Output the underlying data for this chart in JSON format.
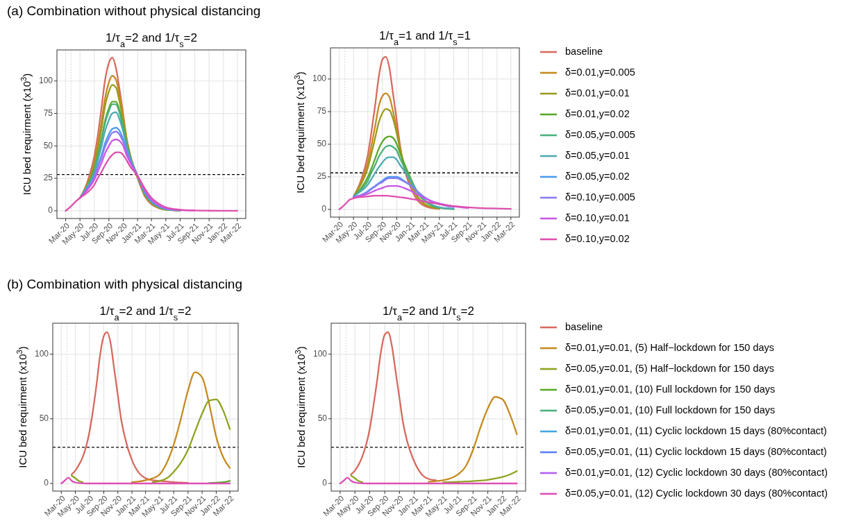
{
  "chart_data": [
    {
      "type": "line",
      "title": "(a) Combination without physical distancing",
      "subtitle": "1/τ$_{a}$=2 and 1/τ$_{s}$=2",
      "ylabel": "ICU bed requirment (x10$^{3}$)",
      "grid": true,
      "x": [
        "2020-03-01",
        "2020-03-15",
        "2020-04-01",
        "2020-04-15",
        "2020-05-01",
        "2020-06-01",
        "2020-07-01",
        "2020-07-15",
        "2020-08-01",
        "2020-08-15",
        "2020-09-01",
        "2020-09-15",
        "2020-10-01",
        "2020-10-15",
        "2020-11-01",
        "2020-11-15",
        "2020-12-01",
        "2021-01-01",
        "2021-02-01",
        "2021-03-01",
        "2021-04-01",
        "2021-05-01",
        "2021-07-01",
        "2021-09-01",
        "2021-11-01",
        "2022-01-01",
        "2022-03-01"
      ],
      "xlim": [
        "2020-01-24",
        "2022-04-06"
      ],
      "xticks": [
        {
          "value": "2020-03-01",
          "label": "Mar-20"
        },
        {
          "value": "2020-05-01",
          "label": "May-20"
        },
        {
          "value": "2020-07-01",
          "label": "Jul-20"
        },
        {
          "value": "2020-09-01",
          "label": "Sep-20"
        },
        {
          "value": "2020-11-01",
          "label": "Nov-20"
        },
        {
          "value": "2021-01-01",
          "label": "Jan-21"
        },
        {
          "value": "2021-03-01",
          "label": "Mar-21"
        },
        {
          "value": "2021-05-01",
          "label": "May-21"
        },
        {
          "value": "2021-07-01",
          "label": "Jul-21"
        },
        {
          "value": "2021-09-01",
          "label": "Sep-21"
        },
        {
          "value": "2021-11-01",
          "label": "Nov-21"
        },
        {
          "value": "2022-01-01",
          "label": "Jan-22"
        },
        {
          "value": "2022-03-01",
          "label": "Mar-22"
        }
      ],
      "ylim": [
        -5.9,
        123.9
      ],
      "yticks": [
        0,
        25,
        50,
        75,
        100
      ],
      "ref_lines": [
        {
          "axis": "y",
          "value": 28,
          "color": "#000000",
          "line_style": "dashed"
        },
        {
          "axis": "x",
          "value": "2020-03-25",
          "color": "#c8c8c8",
          "line_style": "dotted"
        }
      ],
      "series": [
        {
          "color": "#d66a5e",
          "values": [
            null,
            null,
            null,
            null,
            10,
            22,
            42,
            57,
            80,
            100,
            114,
            118,
            110,
            95,
            74,
            56,
            42,
            25,
            11,
            5,
            2,
            0.8,
            0.2,
            null,
            null,
            null,
            null
          ]
        },
        {
          "color": "#c68a1f",
          "values": [
            null,
            null,
            null,
            null,
            10,
            20,
            37,
            50,
            69,
            86,
            99,
            104,
            101,
            90,
            72,
            56,
            43,
            26,
            12,
            5.5,
            2.3,
            1,
            0.3,
            null,
            null,
            null,
            null
          ]
        },
        {
          "color": "#9a9a1e",
          "values": [
            null,
            null,
            null,
            null,
            10,
            20,
            35,
            47,
            64,
            80,
            92,
            97,
            95,
            85,
            69,
            55,
            42,
            26,
            12.5,
            6,
            2.5,
            1,
            0.3,
            null,
            null,
            null,
            null
          ]
        },
        {
          "color": "#5aa82a",
          "values": [
            null,
            null,
            null,
            null,
            10,
            19,
            32,
            42,
            56,
            69,
            79,
            84,
            84,
            78,
            65,
            52,
            41,
            27,
            13,
            6.5,
            3,
            1.2,
            0.3,
            null,
            null,
            null,
            null
          ]
        },
        {
          "color": "#4ab07a",
          "values": [
            null,
            null,
            null,
            null,
            10,
            19,
            31,
            41,
            55,
            67,
            77,
            82,
            82,
            76,
            64,
            52,
            41,
            27,
            13,
            6.5,
            3,
            1.2,
            0.3,
            null,
            null,
            null,
            null
          ]
        },
        {
          "color": "#4eaab0",
          "values": [
            null,
            null,
            null,
            null,
            10,
            18,
            29,
            38,
            50,
            61,
            70,
            75,
            76,
            71,
            61,
            50,
            40,
            27,
            13.5,
            7,
            3.2,
            1.4,
            0.4,
            null,
            null,
            null,
            null
          ]
        },
        {
          "color": "#4a9cf0",
          "values": [
            null,
            null,
            null,
            null,
            10,
            17,
            27,
            34,
            43,
            52,
            59,
            63,
            64,
            62,
            55,
            47,
            39,
            27,
            14.5,
            7.5,
            3.7,
            1.7,
            0.5,
            null,
            null,
            null,
            null
          ]
        },
        {
          "color": "#8a7cf5",
          "values": [
            null,
            null,
            null,
            null,
            10,
            17,
            26,
            33,
            41,
            49,
            56,
            60,
            61,
            59,
            53,
            46,
            38,
            27,
            15,
            8,
            4,
            1.8,
            0.5,
            null,
            null,
            null,
            null
          ]
        },
        {
          "color": "#c857e8",
          "values": [
            null,
            null,
            null,
            null,
            10,
            16,
            24,
            30,
            37,
            44,
            50,
            54,
            55,
            54,
            50,
            43,
            37,
            27,
            15.5,
            8.5,
            4.3,
            2,
            0.6,
            0.2,
            null,
            null,
            null
          ]
        },
        {
          "color": "#de4fae",
          "values": [
            0,
            2,
            5,
            7.5,
            10,
            14,
            20,
            25,
            30,
            35,
            40,
            43,
            45,
            45,
            43,
            39,
            34,
            27,
            17,
            10,
            5.5,
            2.8,
            0.9,
            0.3,
            0.1,
            0,
            0
          ]
        }
      ]
    },
    {
      "type": "line",
      "subtitle": "1/τ$_{a}$=1 and 1/τ$_{s}$=1",
      "ylabel": "ICU bed requirment (x10$^{3}$)",
      "grid": true,
      "legend": "right",
      "x": [
        "2020-03-01",
        "2020-03-15",
        "2020-04-01",
        "2020-04-15",
        "2020-05-01",
        "2020-06-01",
        "2020-07-01",
        "2020-07-15",
        "2020-08-01",
        "2020-08-15",
        "2020-09-01",
        "2020-09-15",
        "2020-10-01",
        "2020-10-15",
        "2020-11-01",
        "2020-11-15",
        "2020-12-01",
        "2021-01-01",
        "2021-02-01",
        "2021-03-01",
        "2021-04-01",
        "2021-05-01",
        "2021-07-01",
        "2021-09-01",
        "2021-11-01",
        "2022-01-01",
        "2022-03-01"
      ],
      "xlim": [
        "2020-01-24",
        "2022-04-06"
      ],
      "xticks": [
        {
          "value": "2020-03-01",
          "label": "Mar-20"
        },
        {
          "value": "2020-05-01",
          "label": "May-20"
        },
        {
          "value": "2020-07-01",
          "label": "Jul-20"
        },
        {
          "value": "2020-09-01",
          "label": "Sep-20"
        },
        {
          "value": "2020-11-01",
          "label": "Nov-20"
        },
        {
          "value": "2021-01-01",
          "label": "Jan-21"
        },
        {
          "value": "2021-03-01",
          "label": "Mar-21"
        },
        {
          "value": "2021-05-01",
          "label": "May-21"
        },
        {
          "value": "2021-07-01",
          "label": "Jul-21"
        },
        {
          "value": "2021-09-01",
          "label": "Sep-21"
        },
        {
          "value": "2021-11-01",
          "label": "Nov-21"
        },
        {
          "value": "2022-01-01",
          "label": "Jan-22"
        },
        {
          "value": "2022-03-01",
          "label": "Mar-22"
        }
      ],
      "ylim": [
        -5.9,
        123.9
      ],
      "yticks": [
        0,
        25,
        50,
        75,
        100
      ],
      "ref_lines": [
        {
          "axis": "y",
          "value": 28,
          "color": "#000000",
          "line_style": "dashed"
        },
        {
          "axis": "x",
          "value": "2020-03-25",
          "color": "#c8c8c8",
          "line_style": "dotted"
        }
      ],
      "series": [
        {
          "name": "baseline",
          "color": "#d66a5e",
          "values": [
            null,
            null,
            null,
            null,
            10,
            22,
            42,
            58,
            80,
            100,
            115,
            117,
            108,
            90,
            68,
            49,
            33,
            16,
            6,
            2.5,
            1,
            0.4,
            null,
            null,
            null,
            null,
            null
          ]
        },
        {
          "name": "δ=0.01,y=0.005",
          "color": "#c68a1f",
          "values": [
            null,
            null,
            null,
            null,
            10,
            20,
            36,
            48,
            64,
            78,
            87,
            89,
            86,
            76,
            61,
            47,
            35,
            19,
            8,
            3.5,
            1.5,
            0.6,
            null,
            null,
            null,
            null,
            null
          ]
        },
        {
          "name": "δ=0.01,y=0.01",
          "color": "#9a9a1e",
          "values": [
            null,
            null,
            null,
            null,
            10,
            19,
            32,
            42,
            55,
            66,
            74,
            77,
            76,
            70,
            58,
            46,
            35,
            20,
            9,
            4,
            1.7,
            0.7,
            null,
            null,
            null,
            null,
            null
          ]
        },
        {
          "name": "δ=0.01,y=0.02",
          "color": "#5aa82a",
          "values": [
            null,
            null,
            null,
            null,
            10,
            16,
            25,
            31,
            39,
            46,
            52,
            55,
            56,
            55,
            50,
            43,
            36,
            23,
            12,
            6,
            2.8,
            1.2,
            0.3,
            null,
            null,
            null,
            null
          ]
        },
        {
          "name": "δ=0.05,y=0.005",
          "color": "#4ab07a",
          "values": [
            null,
            null,
            null,
            null,
            10,
            15,
            22,
            28,
            34,
            40,
            45,
            48,
            49,
            48,
            45,
            39,
            33,
            22,
            12,
            6.5,
            3,
            1.3,
            0.3,
            null,
            null,
            null,
            null
          ]
        },
        {
          "name": "δ=0.05,y=0.01",
          "color": "#4eaab0",
          "values": [
            null,
            null,
            null,
            null,
            10,
            14,
            19,
            23,
            28,
            32,
            36,
            39,
            40,
            40,
            38,
            34,
            30,
            21,
            12.5,
            7,
            3.5,
            1.6,
            0.4,
            null,
            null,
            null,
            null
          ]
        },
        {
          "name": "δ=0.05,y=0.02",
          "color": "#4a9cf0",
          "values": [
            null,
            null,
            null,
            null,
            9.5,
            11,
            14,
            16,
            18,
            20,
            22,
            24,
            25,
            25,
            25,
            24,
            22,
            18,
            13,
            9,
            6,
            4,
            null,
            null,
            null,
            null,
            null
          ]
        },
        {
          "name": "δ=0.10,y=0.005",
          "color": "#8a7cf5",
          "values": [
            null,
            null,
            null,
            null,
            9.5,
            11,
            13.5,
            15.5,
            17.5,
            19.5,
            21,
            23,
            24,
            24,
            24,
            23,
            21.5,
            18,
            13,
            9,
            6,
            4,
            1.8,
            null,
            null,
            null,
            null
          ]
        },
        {
          "name": "δ=0.10,y=0.01",
          "color": "#c857e8",
          "values": [
            null,
            null,
            null,
            null,
            9,
            10.5,
            12,
            13,
            14.5,
            15.5,
            16.5,
            17.5,
            18,
            18,
            18,
            17.5,
            16.5,
            14,
            11,
            8.5,
            6,
            4.5,
            2.3,
            1.1,
            null,
            null,
            null
          ]
        },
        {
          "name": "δ=0.10,y=0.02",
          "color": "#de4fae",
          "values": [
            0,
            2,
            5,
            7.5,
            8.5,
            9.5,
            10,
            10.3,
            10.5,
            10.5,
            10.5,
            10.5,
            10.3,
            10,
            9.7,
            9.3,
            9,
            8,
            7,
            6,
            5,
            4,
            2.5,
            1.6,
            1,
            0.7,
            0.4
          ]
        }
      ]
    },
    {
      "type": "line",
      "title": "(b) Combination with physical distancing",
      "subtitle": "1/τ$_{a}$=2 and 1/τ$_{s}$=2",
      "ylabel": "ICU bed requirment (x10$^{3}$)",
      "grid": true,
      "x": [
        "2020-03-01",
        "2020-03-15",
        "2020-04-01",
        "2020-04-15",
        "2020-05-01",
        "2020-05-15",
        "2020-06-01",
        "2020-07-01",
        "2020-07-15",
        "2020-08-01",
        "2020-08-15",
        "2020-09-01",
        "2020-09-15",
        "2020-10-01",
        "2020-10-15",
        "2020-11-01",
        "2020-11-15",
        "2020-12-01",
        "2021-01-01",
        "2021-02-01",
        "2021-03-01",
        "2021-04-01",
        "2021-05-01",
        "2021-06-01",
        "2021-07-01",
        "2021-08-01",
        "2021-09-01",
        "2021-10-01",
        "2021-11-01",
        "2021-12-01",
        "2022-01-01",
        "2022-02-01",
        "2022-03-01"
      ],
      "xlim": [
        "2020-01-24",
        "2022-04-06"
      ],
      "xticks": [
        {
          "value": "2020-03-01",
          "label": "Mar-20"
        },
        {
          "value": "2020-05-01",
          "label": "May-20"
        },
        {
          "value": "2020-07-01",
          "label": "Jul-20"
        },
        {
          "value": "2020-09-01",
          "label": "Sep-20"
        },
        {
          "value": "2020-11-01",
          "label": "Nov-20"
        },
        {
          "value": "2021-01-01",
          "label": "Jan-21"
        },
        {
          "value": "2021-03-01",
          "label": "Mar-21"
        },
        {
          "value": "2021-05-01",
          "label": "May-21"
        },
        {
          "value": "2021-07-01",
          "label": "Jul-21"
        },
        {
          "value": "2021-09-01",
          "label": "Sep-21"
        },
        {
          "value": "2021-11-01",
          "label": "Nov-21"
        },
        {
          "value": "2022-01-01",
          "label": "Jan-22"
        },
        {
          "value": "2022-03-01",
          "label": "Mar-22"
        }
      ],
      "ylim": [
        -5.9,
        123.9
      ],
      "yticks": [
        0,
        50,
        100
      ],
      "ref_lines": [
        {
          "axis": "y",
          "value": 28,
          "color": "#000000",
          "line_style": "dashed"
        },
        {
          "axis": "x",
          "value": "2020-03-25",
          "color": "#c8c8c8",
          "line_style": "dotted"
        }
      ],
      "series": [
        {
          "color": "#d66a5e",
          "values": [
            null,
            null,
            null,
            7,
            10,
            14,
            20,
            40,
            55,
            77,
            98,
            114,
            117,
            108,
            90,
            68,
            50,
            36,
            18,
            8,
            4,
            2.5,
            2,
            1.5,
            1,
            0.7,
            0.5,
            null,
            null,
            null,
            null,
            null,
            null
          ]
        },
        {
          "color": "#c68a1f",
          "values": [
            null,
            null,
            null,
            null,
            null,
            null,
            null,
            null,
            null,
            null,
            null,
            null,
            null,
            null,
            null,
            null,
            null,
            null,
            1,
            1.5,
            2.5,
            4,
            7,
            16,
            30,
            50,
            72,
            86,
            82,
            62,
            36,
            20,
            12
          ]
        },
        {
          "color": "#8fa21f",
          "values": [
            null,
            null,
            null,
            6,
            4,
            2,
            1,
            null,
            null,
            null,
            null,
            null,
            null,
            null,
            null,
            null,
            null,
            null,
            null,
            null,
            null,
            1,
            2,
            4,
            9,
            16,
            26,
            40,
            54,
            64,
            65,
            56,
            42
          ]
        },
        {
          "color": "#5aa82a",
          "values": [
            null,
            null,
            null,
            null,
            null,
            null,
            null,
            null,
            null,
            null,
            null,
            null,
            null,
            null,
            null,
            null,
            null,
            null,
            null,
            null,
            null,
            null,
            null,
            null,
            null,
            null,
            null,
            null,
            null,
            0.3,
            0.6,
            1,
            2
          ]
        },
        {
          "color": "#4ab07a",
          "values": [
            null,
            null,
            null,
            null,
            null,
            null,
            null,
            null,
            null,
            null,
            null,
            null,
            null,
            null,
            null,
            null,
            null,
            null,
            null,
            null,
            null,
            null,
            null,
            null,
            null,
            null,
            null,
            null,
            null,
            null,
            null,
            null,
            null
          ]
        },
        {
          "color": "#44a8e0",
          "values": [
            null,
            null,
            null,
            null,
            null,
            null,
            null,
            null,
            null,
            null,
            null,
            null,
            null,
            null,
            null,
            null,
            null,
            null,
            null,
            null,
            null,
            null,
            null,
            null,
            null,
            null,
            null,
            null,
            null,
            null,
            null,
            null,
            null
          ]
        },
        {
          "color": "#5a7ff5",
          "values": [
            null,
            null,
            null,
            null,
            null,
            null,
            null,
            null,
            null,
            null,
            null,
            null,
            null,
            null,
            null,
            null,
            null,
            null,
            null,
            null,
            null,
            null,
            null,
            null,
            null,
            null,
            null,
            null,
            null,
            null,
            null,
            null,
            null
          ]
        },
        {
          "color": "#b35ff0",
          "values": [
            null,
            null,
            null,
            null,
            null,
            null,
            null,
            null,
            null,
            null,
            null,
            null,
            null,
            null,
            null,
            null,
            null,
            null,
            null,
            null,
            null,
            null,
            null,
            null,
            null,
            null,
            null,
            null,
            null,
            null,
            null,
            null,
            null
          ]
        },
        {
          "color": "#dd4fb5",
          "values": [
            0,
            2,
            4.5,
            2,
            0.8,
            0.3,
            0.1,
            0,
            0,
            0,
            0,
            0,
            0,
            0,
            0,
            0,
            0,
            0,
            0,
            0,
            0,
            0,
            0,
            0,
            0,
            0,
            0,
            0,
            0,
            0,
            0,
            0,
            0
          ]
        }
      ]
    },
    {
      "type": "line",
      "subtitle": "1/τ$_{a}$=2 and 1/τ$_{s}$=2",
      "ylabel": "ICU bed requirment (x10$^{3}$)",
      "grid": true,
      "legend": "right",
      "x": [
        "2020-03-01",
        "2020-03-15",
        "2020-04-01",
        "2020-04-15",
        "2020-05-01",
        "2020-05-15",
        "2020-06-01",
        "2020-07-01",
        "2020-07-15",
        "2020-08-01",
        "2020-08-15",
        "2020-09-01",
        "2020-09-15",
        "2020-10-01",
        "2020-10-15",
        "2020-11-01",
        "2020-11-15",
        "2020-12-01",
        "2021-01-01",
        "2021-02-01",
        "2021-03-01",
        "2021-04-01",
        "2021-05-01",
        "2021-06-01",
        "2021-07-01",
        "2021-08-01",
        "2021-09-01",
        "2021-10-01",
        "2021-11-01",
        "2021-12-01",
        "2022-01-01",
        "2022-02-01",
        "2022-03-01"
      ],
      "xlim": [
        "2020-01-24",
        "2022-04-06"
      ],
      "xticks": [
        {
          "value": "2020-03-01",
          "label": "Mar-20"
        },
        {
          "value": "2020-05-01",
          "label": "May-20"
        },
        {
          "value": "2020-07-01",
          "label": "Jul-20"
        },
        {
          "value": "2020-09-01",
          "label": "Sep-20"
        },
        {
          "value": "2020-11-01",
          "label": "Nov-20"
        },
        {
          "value": "2021-01-01",
          "label": "Jan-21"
        },
        {
          "value": "2021-03-01",
          "label": "Mar-21"
        },
        {
          "value": "2021-05-01",
          "label": "May-21"
        },
        {
          "value": "2021-07-01",
          "label": "Jul-21"
        },
        {
          "value": "2021-09-01",
          "label": "Sep-21"
        },
        {
          "value": "2021-11-01",
          "label": "Nov-21"
        },
        {
          "value": "2022-01-01",
          "label": "Jan-22"
        },
        {
          "value": "2022-03-01",
          "label": "Mar-22"
        }
      ],
      "ylim": [
        -5.9,
        123.9
      ],
      "yticks": [
        0,
        50,
        100
      ],
      "ref_lines": [
        {
          "axis": "y",
          "value": 28,
          "color": "#000000",
          "line_style": "dashed"
        },
        {
          "axis": "x",
          "value": "2020-03-25",
          "color": "#c8c8c8",
          "line_style": "dotted"
        }
      ],
      "series": [
        {
          "name": "baseline",
          "color": "#d66a5e",
          "values": [
            null,
            null,
            null,
            7,
            10,
            14,
            21,
            42,
            58,
            80,
            100,
            115,
            117,
            106,
            88,
            66,
            48,
            34,
            17,
            7,
            3.5,
            2.5,
            null,
            null,
            null,
            null,
            null,
            null,
            null,
            null,
            null,
            null,
            null
          ]
        },
        {
          "name": "δ=0.01,y=0.01, (5) Half−lockdown for 150 days",
          "color": "#c68a1f",
          "values": [
            null,
            null,
            null,
            null,
            null,
            null,
            null,
            null,
            null,
            null,
            null,
            null,
            null,
            null,
            null,
            null,
            null,
            null,
            null,
            null,
            1.3,
            1.8,
            2.5,
            4,
            7,
            13,
            26,
            43,
            58,
            67,
            65,
            53,
            38
          ]
        },
        {
          "name": "δ=0.05,y=0.01, (5) Half−lockdown for 150 days",
          "color": "#8fa21f",
          "values": [
            null,
            null,
            null,
            6,
            4,
            2,
            1,
            null,
            null,
            null,
            null,
            null,
            null,
            null,
            null,
            null,
            null,
            null,
            null,
            null,
            null,
            null,
            0.8,
            1,
            1.2,
            1.5,
            1.8,
            2.2,
            2.8,
            3.8,
            5,
            7,
            9.5
          ]
        },
        {
          "name": "δ=0.01,y=0.01, (10) Full lockdown for 150 days",
          "color": "#5aa82a",
          "values": [
            null,
            null,
            null,
            null,
            null,
            null,
            null,
            null,
            null,
            null,
            null,
            null,
            null,
            null,
            null,
            null,
            null,
            null,
            null,
            null,
            null,
            null,
            null,
            null,
            null,
            null,
            null,
            null,
            null,
            null,
            null,
            null,
            null
          ]
        },
        {
          "name": "δ=0.05,y=0.01, (10) Full lockdown for 150 days",
          "color": "#4ab07a",
          "values": [
            null,
            null,
            null,
            null,
            null,
            null,
            null,
            null,
            null,
            null,
            null,
            null,
            null,
            null,
            null,
            null,
            null,
            null,
            null,
            null,
            null,
            null,
            null,
            null,
            null,
            null,
            null,
            null,
            null,
            null,
            null,
            null,
            null
          ]
        },
        {
          "name": "δ=0.01,y=0.01, (11) Cyclic lockdown 15 days (80%contact)",
          "color": "#44a8e0",
          "values": [
            null,
            null,
            null,
            null,
            null,
            null,
            null,
            null,
            null,
            null,
            null,
            null,
            null,
            null,
            null,
            null,
            null,
            null,
            null,
            null,
            null,
            null,
            null,
            null,
            null,
            null,
            null,
            null,
            null,
            null,
            null,
            null,
            null
          ]
        },
        {
          "name": "δ=0.05,y=0.01, (11) Cyclic lockdown 15 days (80%contact)",
          "color": "#5a7ff5",
          "values": [
            null,
            null,
            null,
            null,
            null,
            null,
            null,
            null,
            null,
            null,
            null,
            null,
            null,
            null,
            null,
            null,
            null,
            null,
            null,
            null,
            null,
            null,
            null,
            null,
            null,
            null,
            null,
            null,
            null,
            null,
            null,
            null,
            null
          ]
        },
        {
          "name": "δ=0.01,y=0.01, (12) Cyclic lockdown 30 days (80%contact)",
          "color": "#b35ff0",
          "values": [
            null,
            null,
            null,
            null,
            null,
            null,
            null,
            null,
            null,
            null,
            null,
            null,
            null,
            null,
            null,
            null,
            null,
            null,
            null,
            null,
            null,
            null,
            null,
            null,
            null,
            null,
            null,
            null,
            null,
            null,
            null,
            null,
            null
          ]
        },
        {
          "name": "δ=0.05,y=0.01, (12) Cyclic lockdown 30 days (80%contact)",
          "color": "#dd4fb5",
          "values": [
            0,
            2,
            4.5,
            2,
            0.8,
            0.3,
            0.1,
            0,
            0,
            0,
            0,
            0,
            0,
            0,
            0,
            0,
            0,
            0,
            0,
            0,
            0,
            0,
            0,
            0,
            0,
            0,
            0,
            0,
            0,
            0,
            0,
            0,
            0
          ]
        }
      ]
    }
  ]
}
